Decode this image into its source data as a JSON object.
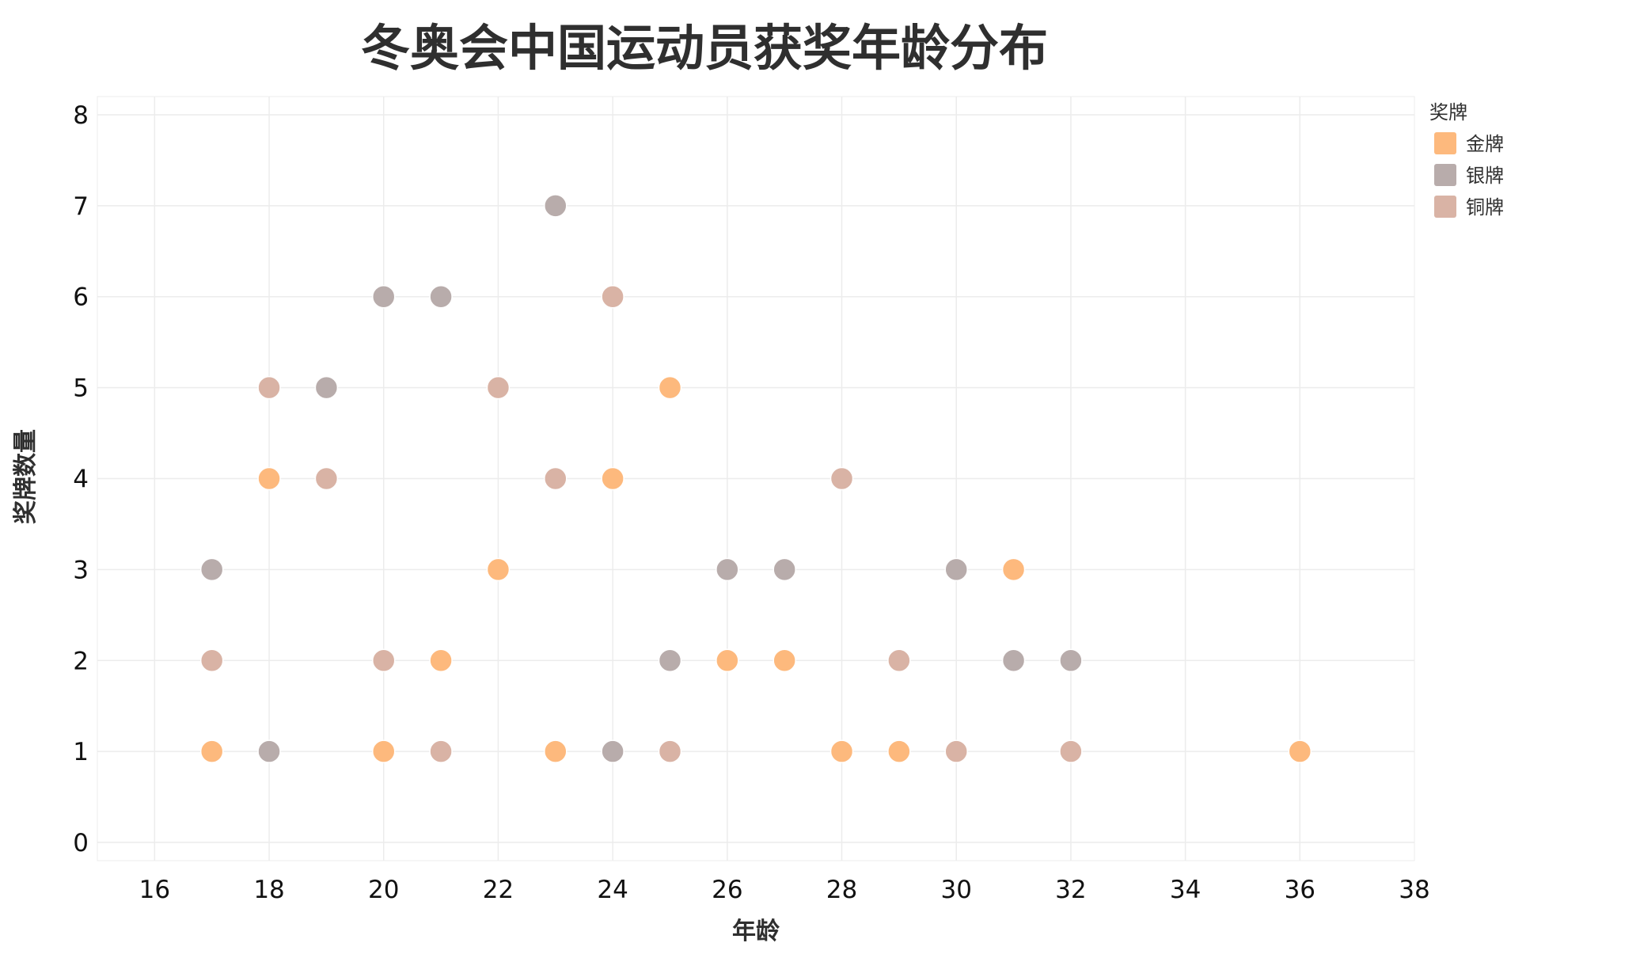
{
  "chart_data": {
    "type": "scatter",
    "title": "冬奥会中国运动员获奖年龄分布",
    "xlabel": "年龄",
    "ylabel": "奖牌数量",
    "xlim": [
      15,
      38
    ],
    "ylim": [
      -0.2,
      8.2
    ],
    "xticks": [
      16,
      18,
      20,
      22,
      24,
      26,
      28,
      30,
      32,
      34,
      36,
      38
    ],
    "yticks": [
      0,
      1,
      2,
      3,
      4,
      5,
      6,
      7,
      8
    ],
    "grid": true,
    "legend": {
      "title": "奖牌",
      "position": "top-right"
    },
    "series": [
      {
        "name": "金牌",
        "color": "#FDB97D",
        "points": [
          {
            "x": 17,
            "y": 1
          },
          {
            "x": 18,
            "y": 4
          },
          {
            "x": 20,
            "y": 1
          },
          {
            "x": 21,
            "y": 2
          },
          {
            "x": 22,
            "y": 3
          },
          {
            "x": 23,
            "y": 1
          },
          {
            "x": 24,
            "y": 4
          },
          {
            "x": 25,
            "y": 5
          },
          {
            "x": 26,
            "y": 2
          },
          {
            "x": 27,
            "y": 2
          },
          {
            "x": 28,
            "y": 1
          },
          {
            "x": 29,
            "y": 1
          },
          {
            "x": 31,
            "y": 3
          },
          {
            "x": 36,
            "y": 1
          }
        ]
      },
      {
        "name": "银牌",
        "color": "#B8ACAB",
        "points": [
          {
            "x": 17,
            "y": 3
          },
          {
            "x": 18,
            "y": 1
          },
          {
            "x": 19,
            "y": 5
          },
          {
            "x": 20,
            "y": 6
          },
          {
            "x": 21,
            "y": 6
          },
          {
            "x": 23,
            "y": 7
          },
          {
            "x": 24,
            "y": 1
          },
          {
            "x": 25,
            "y": 2
          },
          {
            "x": 26,
            "y": 3
          },
          {
            "x": 27,
            "y": 3
          },
          {
            "x": 30,
            "y": 3
          },
          {
            "x": 31,
            "y": 2
          },
          {
            "x": 32,
            "y": 2
          }
        ]
      },
      {
        "name": "铜牌",
        "color": "#D9B3A5",
        "points": [
          {
            "x": 17,
            "y": 2
          },
          {
            "x": 18,
            "y": 5
          },
          {
            "x": 19,
            "y": 4
          },
          {
            "x": 20,
            "y": 2
          },
          {
            "x": 21,
            "y": 1
          },
          {
            "x": 22,
            "y": 5
          },
          {
            "x": 23,
            "y": 4
          },
          {
            "x": 24,
            "y": 6
          },
          {
            "x": 25,
            "y": 1
          },
          {
            "x": 28,
            "y": 4
          },
          {
            "x": 29,
            "y": 2
          },
          {
            "x": 30,
            "y": 1
          },
          {
            "x": 32,
            "y": 1
          }
        ]
      }
    ]
  }
}
